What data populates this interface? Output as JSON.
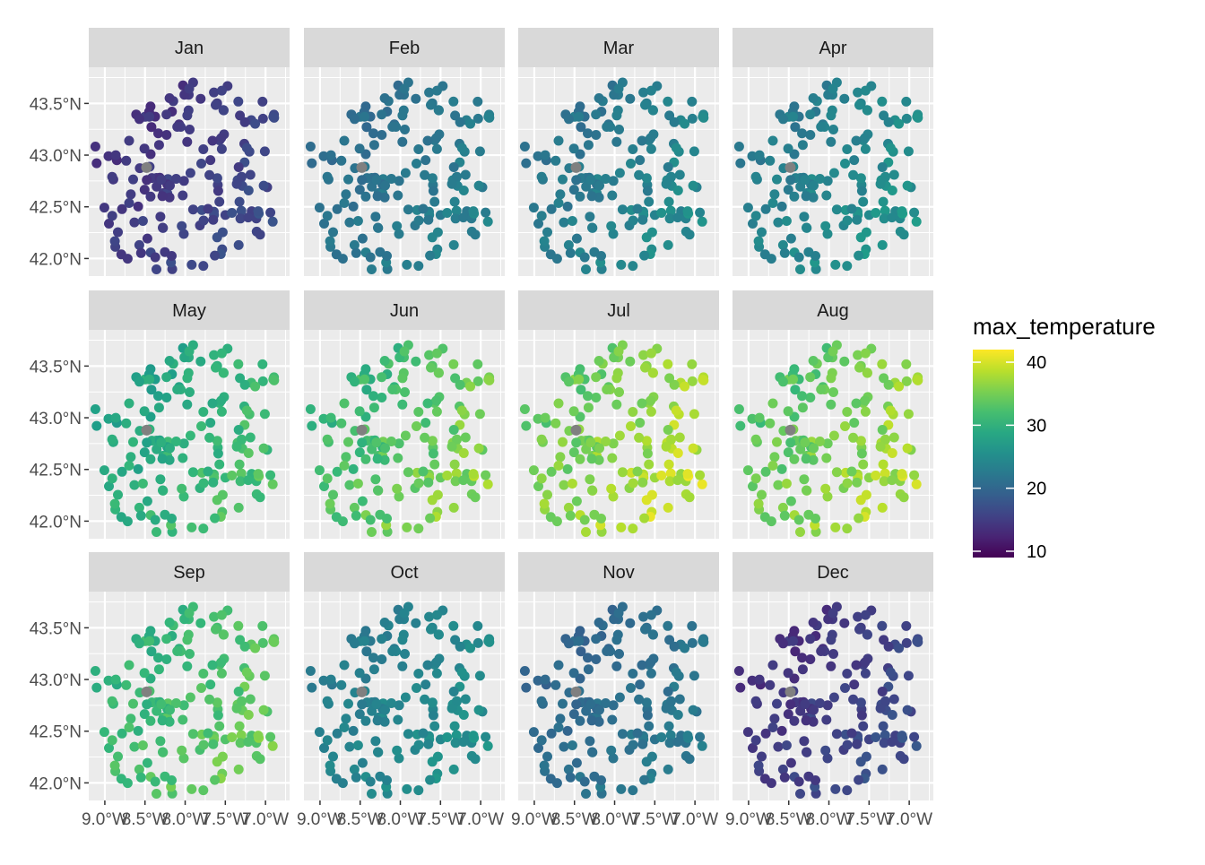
{
  "chart_data": {
    "type": "scatter",
    "facet_by": "month",
    "panels": [
      "Jan",
      "Feb",
      "Mar",
      "Apr",
      "May",
      "Jun",
      "Jul",
      "Aug",
      "Sep",
      "Oct",
      "Nov",
      "Dec"
    ],
    "month_mean_max_temperature": [
      15,
      22,
      23,
      24,
      30,
      33,
      36,
      35,
      32,
      24,
      21,
      15
    ],
    "month_spread": [
      2.5,
      2.5,
      3,
      3,
      4,
      5,
      5,
      5,
      4,
      2.5,
      2.5,
      3
    ],
    "station_count": 165,
    "x_axis": {
      "ticks": [
        -9.0,
        -8.5,
        -8.0,
        -7.5,
        -7.0
      ],
      "tick_labels": [
        "9.0°W",
        "8.5°W",
        "8.0°W",
        "7.5°W",
        "7.0°W"
      ],
      "lim": [
        -9.2,
        -6.7
      ]
    },
    "y_axis": {
      "ticks": [
        42.0,
        42.5,
        43.0,
        43.5
      ],
      "tick_labels": [
        "42.0°N",
        "42.5°N",
        "43.0°N",
        "43.5°N"
      ],
      "lim": [
        41.83,
        43.85
      ]
    },
    "legend": {
      "title": "max_temperature",
      "placement": "right",
      "ticks": [
        40,
        30,
        20,
        10
      ],
      "tick_labels": [
        "40",
        "30",
        "20",
        "10"
      ],
      "range": [
        9,
        42
      ],
      "colormap": "viridis"
    },
    "na_point_color": "#808080",
    "grid": true,
    "panel_background": "#ebebeb",
    "strip_background": "#d9d9d9"
  }
}
